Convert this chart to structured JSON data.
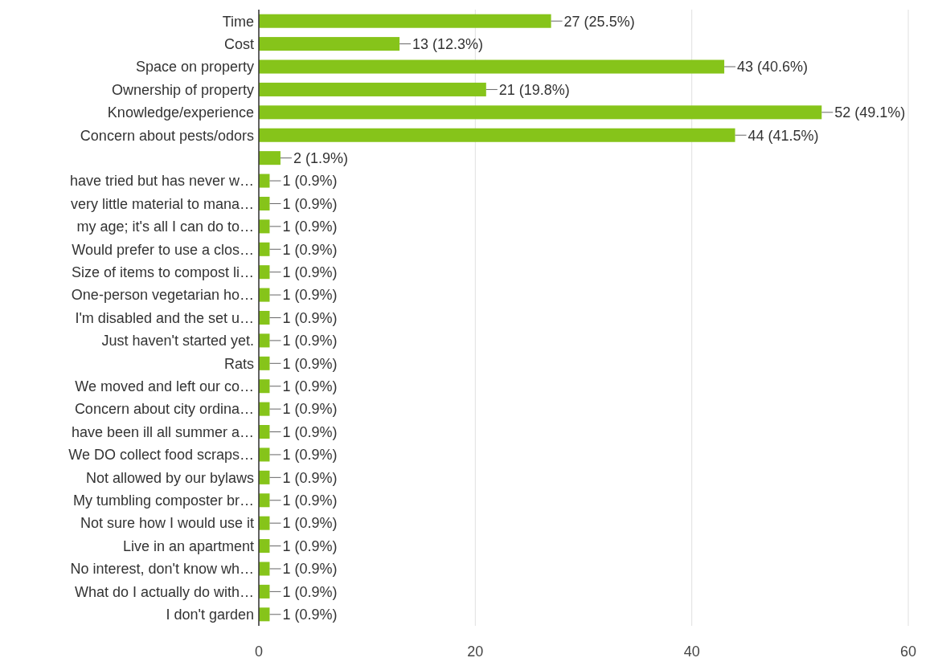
{
  "chart_data": {
    "type": "bar",
    "orientation": "horizontal",
    "categories": [
      "Time",
      "Cost",
      "Space on property",
      "Ownership of property",
      "Knowledge/experience",
      "Concern about pests/odors",
      null,
      "have tried but has never w…",
      "very little material to mana…",
      "my age; it's all I can do to…",
      "Would prefer to use a clos…",
      "Size of items to compost li…",
      "One-person vegetarian ho…",
      "I'm disabled and the set u…",
      "Just haven't started yet.",
      "Rats",
      "We moved and left our co…",
      "Concern about city ordina…",
      "have been ill all summer a…",
      "We DO collect food scraps…",
      "Not allowed by our bylaws",
      "My tumbling composter br…",
      "Not sure how I would use it",
      "Live in an apartment",
      "No interest, don't know wh…",
      "What do I actually do with…",
      "I don't garden"
    ],
    "values": [
      27,
      13,
      43,
      21,
      52,
      44,
      2,
      1,
      1,
      1,
      1,
      1,
      1,
      1,
      1,
      1,
      1,
      1,
      1,
      1,
      1,
      1,
      1,
      1,
      1,
      1,
      1
    ],
    "value_labels": [
      "27 (25.5%)",
      "13 (12.3%)",
      "43 (40.6%)",
      "21 (19.8%)",
      "52 (49.1%)",
      "44 (41.5%)",
      "2 (1.9%)",
      "1 (0.9%)",
      "1 (0.9%)",
      "1 (0.9%)",
      "1 (0.9%)",
      "1 (0.9%)",
      "1 (0.9%)",
      "1 (0.9%)",
      "1 (0.9%)",
      "1 (0.9%)",
      "1 (0.9%)",
      "1 (0.9%)",
      "1 (0.9%)",
      "1 (0.9%)",
      "1 (0.9%)",
      "1 (0.9%)",
      "1 (0.9%)",
      "1 (0.9%)",
      "1 (0.9%)",
      "1 (0.9%)",
      "1 (0.9%)"
    ],
    "color": "#86c41a",
    "xlim": [
      0,
      60
    ],
    "xticks": [
      0,
      20,
      40,
      60
    ],
    "grid": "x"
  }
}
